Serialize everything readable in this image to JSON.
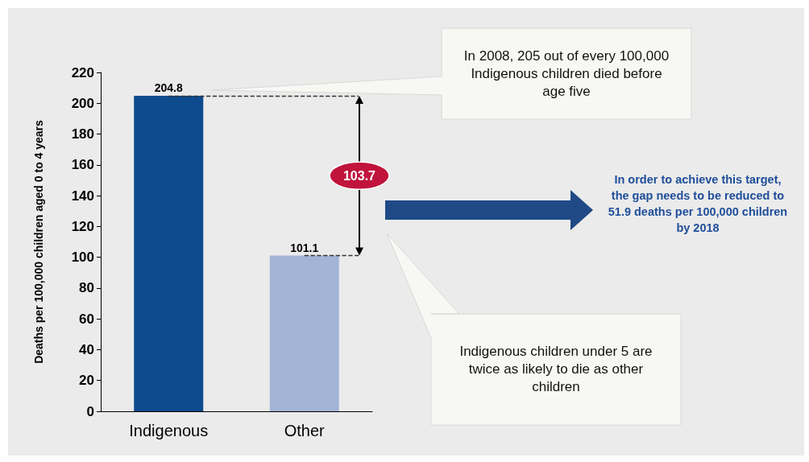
{
  "chart_data": {
    "type": "bar",
    "categories": [
      "Indigenous",
      "Other"
    ],
    "values": [
      204.8,
      101.1
    ],
    "colors": [
      "#0e4a8e",
      "#a3b5d6"
    ],
    "ylabel": "Deaths per 100,000 children aged 0 to 4 years",
    "ylim": [
      0,
      220
    ],
    "yticks": [
      0,
      20,
      40,
      60,
      80,
      100,
      120,
      140,
      160,
      180,
      200,
      220
    ],
    "grid": false,
    "data_labels": true,
    "ref_lines": [
      {
        "axis": "y",
        "value": 204.8,
        "line_style": "dashed",
        "color": "#333333"
      },
      {
        "axis": "y",
        "value": 101.1,
        "line_style": "dashed",
        "color": "#333333"
      }
    ],
    "annotations": [
      "103.7",
      "In 2008, 205 out of every 100,000 Indigenous children died before age five",
      "In order to achieve this target, the gap needs to be reduced to 51.9 deaths per 100,000 children by 2018",
      "Indigenous children under 5 are twice as likely to die as other children"
    ]
  }
}
